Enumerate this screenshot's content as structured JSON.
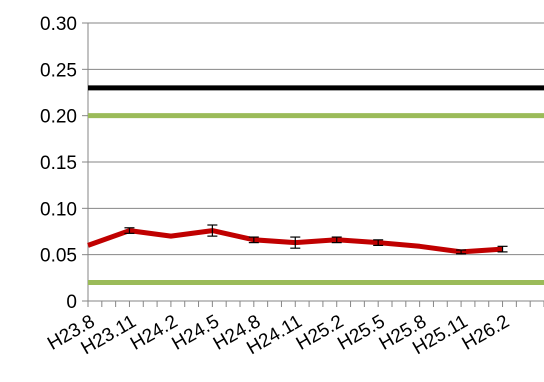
{
  "chart_data": {
    "type": "line",
    "title": "",
    "xlabel": "",
    "ylabel": "",
    "ylim": [
      0,
      0.3
    ],
    "y_ticks": [
      {
        "value": 0,
        "label": "0"
      },
      {
        "value": 0.05,
        "label": "0.05"
      },
      {
        "value": 0.1,
        "label": "0.10"
      },
      {
        "value": 0.15,
        "label": "0.15"
      },
      {
        "value": 0.2,
        "label": "0.20"
      },
      {
        "value": 0.25,
        "label": "0.25"
      },
      {
        "value": 0.3,
        "label": "0.30"
      }
    ],
    "grid": "horizontal",
    "legend": "none",
    "categories": [
      "H23.8",
      "H23.11",
      "H24.2",
      "H24.5",
      "H24.8",
      "H24.11",
      "H25.2",
      "H25.5",
      "H25.8",
      "H25.11",
      "H26.2"
    ],
    "series": [
      {
        "values": [
          0.06,
          0.076,
          0.07,
          0.076,
          0.066,
          0.063,
          0.066,
          0.063,
          0.059,
          0.053,
          0.056
        ],
        "error": [
          null,
          0.003,
          null,
          0.006,
          0.003,
          0.006,
          0.003,
          0.003,
          null,
          0.002,
          0.003
        ],
        "color": "#c00000"
      }
    ],
    "reference_lines": [
      {
        "value": 0.23,
        "color": "#000000"
      },
      {
        "value": 0.2,
        "color": "#9bbb59"
      },
      {
        "value": 0.02,
        "color": "#9bbb59"
      }
    ]
  }
}
